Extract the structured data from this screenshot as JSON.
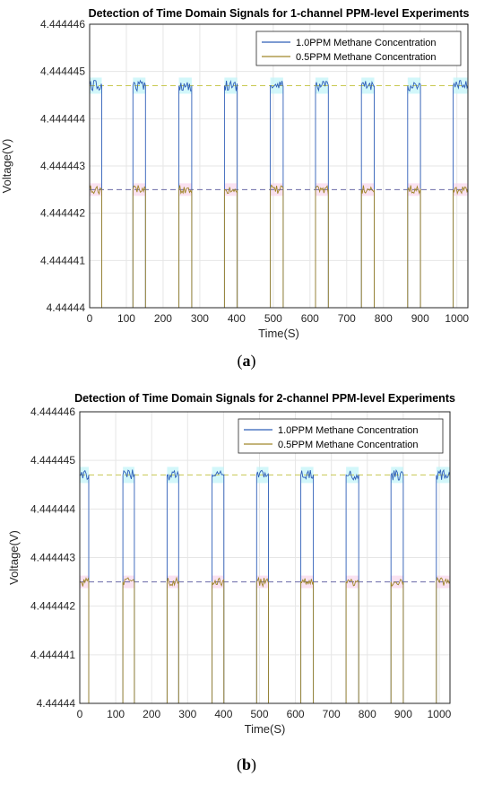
{
  "chart_data": [
    {
      "type": "line",
      "title": "Detection of Time Domain Signals for 1-channel PPM-level Experiments",
      "xlabel": "Time(S)",
      "ylabel": "Voltage(V)",
      "xlim": [
        0,
        1030
      ],
      "ylim": [
        4.44444,
        4.444446
      ],
      "xticks": [
        "0",
        "100",
        "200",
        "300",
        "400",
        "500",
        "600",
        "700",
        "800",
        "900",
        "1000"
      ],
      "yticks": [
        "4.44444",
        "4.444441",
        "4.444442",
        "4.444443",
        "4.444444",
        "4.444445",
        "4.444446"
      ],
      "grid": true,
      "legend_position": "top-right",
      "caption": "a",
      "pulses": [
        {
          "start": 0,
          "end": 33
        },
        {
          "start": 118,
          "end": 152
        },
        {
          "start": 243,
          "end": 278
        },
        {
          "start": 367,
          "end": 402
        },
        {
          "start": 492,
          "end": 527
        },
        {
          "start": 615,
          "end": 650
        },
        {
          "start": 740,
          "end": 775
        },
        {
          "start": 866,
          "end": 901
        },
        {
          "start": 990,
          "end": 1030
        }
      ],
      "series": [
        {
          "name": "1.0PPM Methane Concentration",
          "color": "#2f5fb8",
          "level": 4.4444447,
          "reference_color": "#c8c850"
        },
        {
          "name": "0.5PPM Methane Concentration",
          "color": "#a0862a",
          "level": 4.4444425,
          "reference_color": "#6a6aa8"
        }
      ],
      "baseline": 4.44444
    },
    {
      "type": "line",
      "title": "Detection of Time Domain Signals for 2-channel PPM-level Experiments",
      "xlabel": "Time(S)",
      "ylabel": "Voltage(V)",
      "xlim": [
        0,
        1030
      ],
      "ylim": [
        4.44444,
        4.444446
      ],
      "xticks": [
        "0",
        "100",
        "200",
        "300",
        "400",
        "500",
        "600",
        "700",
        "800",
        "900",
        "1000"
      ],
      "yticks": [
        "4.44444",
        "4.444441",
        "4.444442",
        "4.444443",
        "4.444444",
        "4.444445",
        "4.444446"
      ],
      "grid": true,
      "legend_position": "top-right",
      "caption": "b",
      "pulses": [
        {
          "start": 0,
          "end": 25
        },
        {
          "start": 120,
          "end": 152
        },
        {
          "start": 243,
          "end": 275
        },
        {
          "start": 368,
          "end": 401
        },
        {
          "start": 492,
          "end": 525
        },
        {
          "start": 615,
          "end": 650
        },
        {
          "start": 741,
          "end": 776
        },
        {
          "start": 866,
          "end": 900
        },
        {
          "start": 992,
          "end": 1030
        }
      ],
      "series": [
        {
          "name": "1.0PPM Methane Concentration",
          "color": "#2f5fb8",
          "level": 4.4444447,
          "reference_color": "#c8c850"
        },
        {
          "name": "0.5PPM Methane Concentration",
          "color": "#a0862a",
          "level": 4.4444425,
          "reference_color": "#6a6aa8"
        }
      ],
      "baseline": 4.44444
    }
  ]
}
